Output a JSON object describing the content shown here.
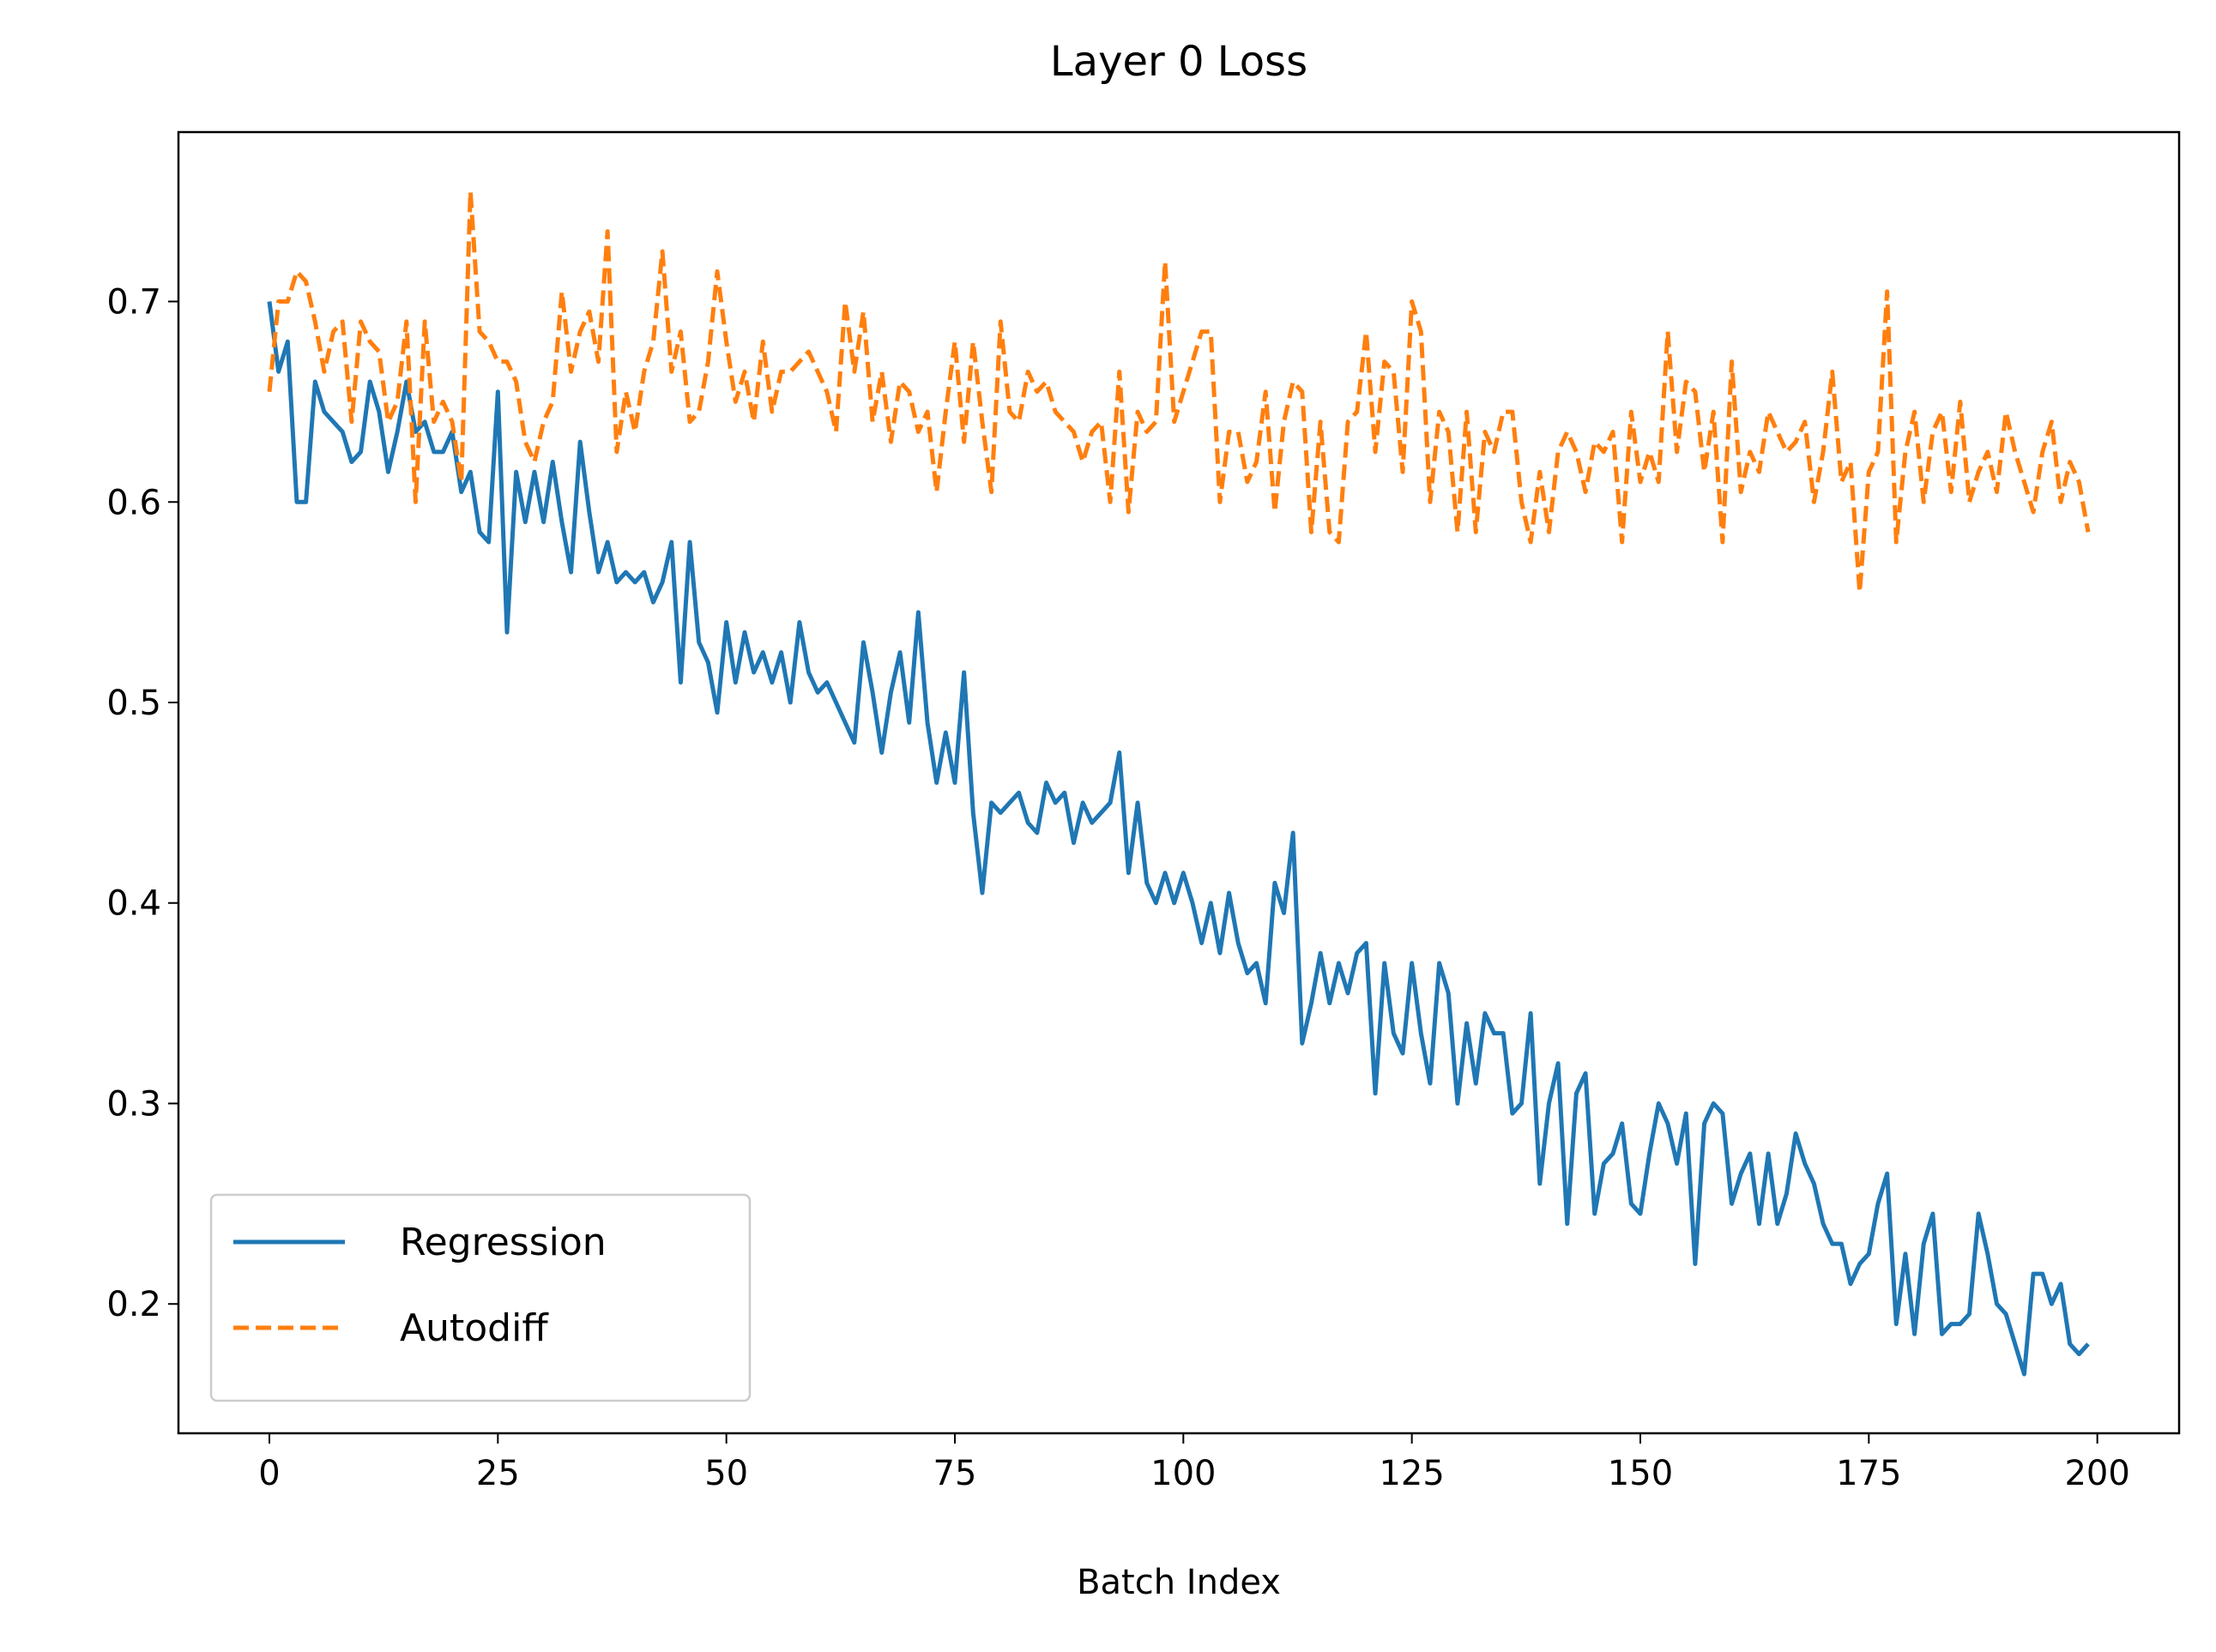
{
  "chart_data": {
    "type": "line",
    "title": "Layer 0 Loss",
    "x_label": "Batch Index",
    "x": [
      0,
      1,
      2,
      3,
      4,
      5,
      6,
      7,
      8,
      9,
      10,
      11,
      12,
      13,
      14,
      15,
      16,
      17,
      18,
      19,
      20,
      21,
      22,
      23,
      24,
      25,
      26,
      27,
      28,
      29,
      30,
      31,
      32,
      33,
      34,
      35,
      36,
      37,
      38,
      39,
      40,
      41,
      42,
      43,
      44,
      45,
      46,
      47,
      48,
      49,
      50,
      51,
      52,
      53,
      54,
      55,
      56,
      57,
      58,
      59,
      60,
      61,
      62,
      63,
      64,
      65,
      66,
      67,
      68,
      69,
      70,
      71,
      72,
      73,
      74,
      75,
      76,
      77,
      78,
      79,
      80,
      81,
      82,
      83,
      84,
      85,
      86,
      87,
      88,
      89,
      90,
      91,
      92,
      93,
      94,
      95,
      96,
      97,
      98,
      99,
      100,
      101,
      102,
      103,
      104,
      105,
      106,
      107,
      108,
      109,
      110,
      111,
      112,
      113,
      114,
      115,
      116,
      117,
      118,
      119,
      120,
      121,
      122,
      123,
      124,
      125,
      126,
      127,
      128,
      129,
      130,
      131,
      132,
      133,
      134,
      135,
      136,
      137,
      138,
      139,
      140,
      141,
      142,
      143,
      144,
      145,
      146,
      147,
      148,
      149,
      150,
      151,
      152,
      153,
      154,
      155,
      156,
      157,
      158,
      159,
      160,
      161,
      162,
      163,
      164,
      165,
      166,
      167,
      168,
      169,
      170,
      171,
      172,
      173,
      174,
      175,
      176,
      177,
      178,
      179,
      180,
      181,
      182,
      183,
      184,
      185,
      186,
      187,
      188,
      189,
      190,
      191,
      192,
      193,
      194,
      195,
      196,
      197,
      198,
      199
    ],
    "series": [
      {
        "name": "Regression",
        "color": "#1f77b4",
        "style": "solid",
        "values": [
          0.7,
          0.665,
          0.68,
          0.6,
          0.6,
          0.66,
          0.645,
          0.64,
          0.635,
          0.62,
          0.625,
          0.66,
          0.645,
          0.615,
          0.635,
          0.66,
          0.635,
          0.64,
          0.625,
          0.625,
          0.635,
          0.605,
          0.615,
          0.585,
          0.58,
          0.655,
          0.535,
          0.615,
          0.59,
          0.615,
          0.59,
          0.62,
          0.59,
          0.565,
          0.63,
          0.595,
          0.565,
          0.58,
          0.56,
          0.565,
          0.56,
          0.565,
          0.55,
          0.56,
          0.58,
          0.51,
          0.58,
          0.53,
          0.52,
          0.495,
          0.54,
          0.51,
          0.535,
          0.515,
          0.525,
          0.51,
          0.525,
          0.5,
          0.54,
          0.515,
          0.505,
          0.51,
          0.5,
          0.49,
          0.48,
          0.53,
          0.505,
          0.475,
          0.505,
          0.525,
          0.49,
          0.545,
          0.49,
          0.46,
          0.485,
          0.46,
          0.515,
          0.445,
          0.405,
          0.45,
          0.445,
          0.45,
          0.455,
          0.44,
          0.435,
          0.46,
          0.45,
          0.455,
          0.43,
          0.45,
          0.44,
          0.445,
          0.45,
          0.475,
          0.415,
          0.45,
          0.41,
          0.4,
          0.415,
          0.4,
          0.415,
          0.4,
          0.38,
          0.4,
          0.375,
          0.405,
          0.38,
          0.365,
          0.37,
          0.35,
          0.41,
          0.395,
          0.435,
          0.33,
          0.35,
          0.375,
          0.35,
          0.37,
          0.355,
          0.375,
          0.38,
          0.305,
          0.37,
          0.335,
          0.325,
          0.37,
          0.335,
          0.31,
          0.37,
          0.355,
          0.3,
          0.34,
          0.31,
          0.345,
          0.335,
          0.335,
          0.295,
          0.3,
          0.345,
          0.26,
          0.3,
          0.32,
          0.24,
          0.305,
          0.315,
          0.245,
          0.27,
          0.275,
          0.29,
          0.25,
          0.245,
          0.275,
          0.3,
          0.29,
          0.27,
          0.295,
          0.22,
          0.29,
          0.3,
          0.295,
          0.25,
          0.265,
          0.275,
          0.24,
          0.275,
          0.24,
          0.255,
          0.285,
          0.27,
          0.26,
          0.24,
          0.23,
          0.23,
          0.21,
          0.22,
          0.225,
          0.25,
          0.265,
          0.19,
          0.225,
          0.185,
          0.23,
          0.245,
          0.185,
          0.19,
          0.19,
          0.195,
          0.245,
          0.225,
          0.2,
          0.195,
          0.18,
          0.165,
          0.215,
          0.215,
          0.2,
          0.21,
          0.18,
          0.175,
          0.18
        ]
      },
      {
        "name": "Autodiff",
        "color": "#ff7f0e",
        "style": "dashed",
        "values": [
          0.655,
          0.7,
          0.7,
          0.715,
          0.71,
          0.69,
          0.665,
          0.685,
          0.69,
          0.64,
          0.69,
          0.68,
          0.675,
          0.64,
          0.65,
          0.69,
          0.6,
          0.69,
          0.64,
          0.65,
          0.64,
          0.61,
          0.755,
          0.685,
          0.68,
          0.67,
          0.67,
          0.66,
          0.63,
          0.62,
          0.64,
          0.65,
          0.705,
          0.665,
          0.685,
          0.695,
          0.67,
          0.735,
          0.625,
          0.655,
          0.635,
          0.665,
          0.68,
          0.725,
          0.665,
          0.685,
          0.64,
          0.645,
          0.67,
          0.715,
          0.68,
          0.65,
          0.665,
          0.64,
          0.68,
          0.645,
          0.665,
          0.665,
          0.67,
          0.675,
          0.665,
          0.655,
          0.635,
          0.7,
          0.665,
          0.695,
          0.64,
          0.665,
          0.63,
          0.66,
          0.655,
          0.635,
          0.645,
          0.605,
          0.645,
          0.68,
          0.63,
          0.68,
          0.64,
          0.605,
          0.69,
          0.645,
          0.64,
          0.665,
          0.655,
          0.66,
          0.645,
          0.64,
          0.635,
          0.62,
          0.635,
          0.64,
          0.6,
          0.665,
          0.595,
          0.645,
          0.635,
          0.64,
          0.72,
          0.64,
          0.655,
          0.67,
          0.685,
          0.685,
          0.6,
          0.635,
          0.635,
          0.61,
          0.62,
          0.655,
          0.595,
          0.64,
          0.66,
          0.655,
          0.585,
          0.64,
          0.585,
          0.58,
          0.64,
          0.645,
          0.685,
          0.625,
          0.67,
          0.665,
          0.615,
          0.7,
          0.685,
          0.6,
          0.645,
          0.635,
          0.585,
          0.645,
          0.585,
          0.635,
          0.625,
          0.645,
          0.645,
          0.6,
          0.58,
          0.615,
          0.585,
          0.625,
          0.635,
          0.625,
          0.605,
          0.63,
          0.625,
          0.635,
          0.58,
          0.645,
          0.61,
          0.625,
          0.61,
          0.685,
          0.625,
          0.66,
          0.655,
          0.615,
          0.645,
          0.58,
          0.67,
          0.605,
          0.625,
          0.615,
          0.645,
          0.635,
          0.625,
          0.63,
          0.64,
          0.6,
          0.625,
          0.665,
          0.61,
          0.62,
          0.555,
          0.615,
          0.625,
          0.705,
          0.58,
          0.625,
          0.645,
          0.6,
          0.635,
          0.645,
          0.605,
          0.65,
          0.6,
          0.615,
          0.625,
          0.605,
          0.645,
          0.625,
          0.61,
          0.595,
          0.625,
          0.64,
          0.6,
          0.62,
          0.61,
          0.585
        ]
      }
    ],
    "xlim": [
      -9.95,
      208.95
    ],
    "xticks": [
      0,
      25,
      50,
      75,
      100,
      125,
      150,
      175,
      200
    ],
    "ylim": [
      0.1355,
      0.7845
    ],
    "yticks": [
      0.2,
      0.3,
      0.4,
      0.5,
      0.6,
      0.7
    ],
    "grid": false,
    "legend": "lower left"
  }
}
